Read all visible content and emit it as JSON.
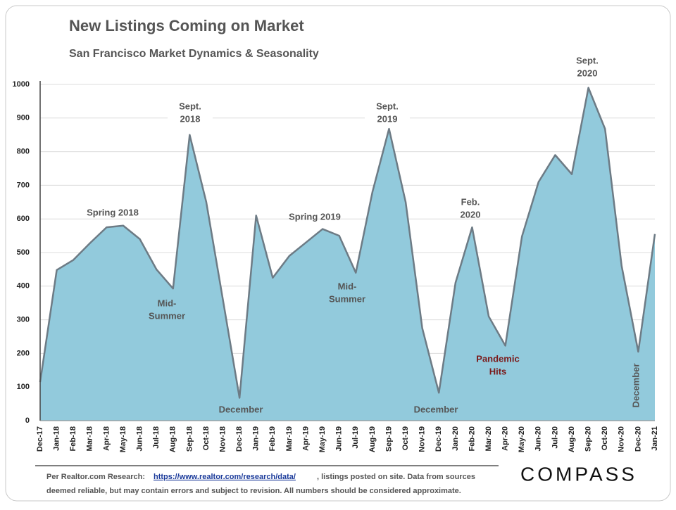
{
  "chart_data": {
    "type": "area",
    "title": "New Listings Coming on Market",
    "subtitle": "San Francisco Market Dynamics & Seasonality",
    "categories": [
      "Dec-17",
      "Jan-18",
      "Feb-18",
      "Mar-18",
      "Apr-18",
      "May-18",
      "Jun-18",
      "Jul-18",
      "Aug-18",
      "Sep-18",
      "Oct-18",
      "Nov-18",
      "Dec-18",
      "Jan-19",
      "Feb-19",
      "Mar-19",
      "Apr-19",
      "May-19",
      "Jun-19",
      "Jul-19",
      "Aug-19",
      "Sep-19",
      "Oct-19",
      "Nov-19",
      "Dec-19",
      "Jan-20",
      "Feb-20",
      "Mar-20",
      "Apr-20",
      "May-20",
      "Jun-20",
      "Jul-20",
      "Aug-20",
      "Sep-20",
      "Oct-20",
      "Nov-20",
      "Dec-20",
      "Jan-21"
    ],
    "values": [
      115,
      448,
      478,
      528,
      575,
      580,
      540,
      450,
      393,
      850,
      650,
      360,
      68,
      610,
      425,
      490,
      530,
      570,
      550,
      440,
      680,
      868,
      650,
      275,
      83,
      410,
      575,
      310,
      223,
      548,
      710,
      790,
      733,
      990,
      868,
      460,
      205,
      555
    ],
    "color": "#92cadc",
    "line_color": "#6d7b85",
    "ylim": [
      0,
      1000
    ],
    "yticks": [
      0,
      100,
      200,
      300,
      400,
      500,
      600,
      700,
      800,
      900,
      1000
    ],
    "grid": true,
    "annotations": [
      {
        "lines": [
          "Spring 2018"
        ]
      },
      {
        "lines": [
          "Mid-",
          "Summer"
        ]
      },
      {
        "lines": [
          "Sept.",
          "2018"
        ]
      },
      {
        "lines": [
          "December"
        ]
      },
      {
        "lines": [
          "Spring 2019"
        ]
      },
      {
        "lines": [
          "Mid-",
          "Summer"
        ]
      },
      {
        "lines": [
          "Sept.",
          "2019"
        ]
      },
      {
        "lines": [
          "December"
        ]
      },
      {
        "lines": [
          "Feb.",
          "2020"
        ]
      },
      {
        "lines": [
          "Pandemic",
          "Hits"
        ],
        "color": "#7a1a1a"
      },
      {
        "lines": [
          "Sept.",
          "2020"
        ]
      },
      {
        "lines": [
          "December"
        ]
      }
    ]
  },
  "footer": {
    "prefix": "Per Realtor.com Research:",
    "link": "https://www.realtor.com/research/data/",
    "rest": ", listings posted on site. Data from sources",
    "line2": "deemed reliable, but may contain errors and subject to revision. All numbers should be considered approximate."
  },
  "logo": "COMPASS"
}
